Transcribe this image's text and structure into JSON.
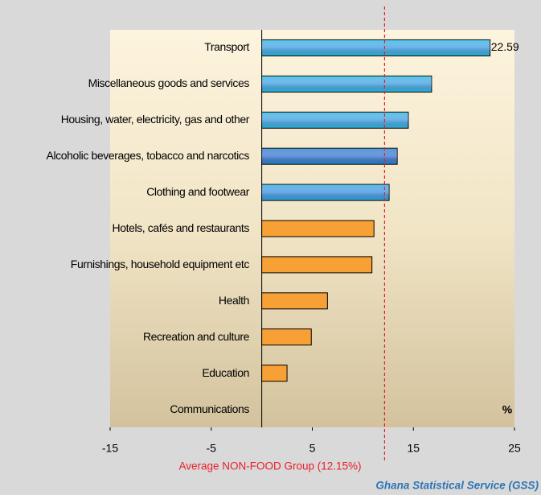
{
  "chart_data": {
    "type": "bar",
    "orientation": "horizontal",
    "categories": [
      "Transport",
      "Miscellaneous goods and services",
      "Housing, water, electricity, gas and other",
      "Alcoholic beverages, tobacco and narcotics",
      "Clothing and footwear",
      "Hotels, cafés and restaurants",
      "Furnishings, household equipment etc",
      "Health",
      "Recreation and culture",
      "Education",
      "Communications"
    ],
    "values": [
      22.59,
      16.8,
      14.5,
      13.4,
      12.6,
      11.1,
      10.9,
      6.5,
      4.9,
      2.5,
      0
    ],
    "value_labels": [
      "22.59",
      null,
      null,
      null,
      null,
      null,
      null,
      null,
      null,
      null,
      null
    ],
    "colors": [
      "#35b9e6",
      "#35b9e6",
      "#35b9e6",
      "#2f86d2",
      "#35a9e6",
      "#f7a035",
      "#f7a035",
      "#f7a035",
      "#f7a035",
      "#f7a035",
      "#f7a035"
    ],
    "xlim": [
      -15,
      25
    ],
    "xticks": [
      -15,
      -5,
      5,
      15,
      25
    ],
    "average_line": 12.15,
    "average_color": "#e8202a",
    "annotation": "Average  NON-FOOD Group (12.15%)",
    "unit_label": "%",
    "source": "Ghana Statistical Service (GSS)"
  }
}
